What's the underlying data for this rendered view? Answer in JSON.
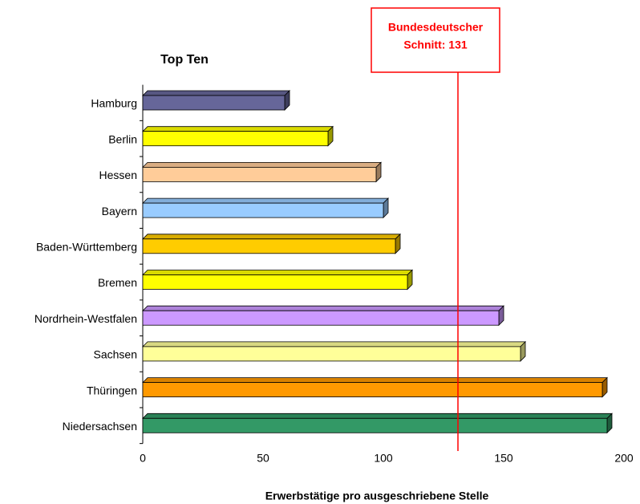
{
  "chart_data": {
    "type": "bar",
    "orientation": "horizontal",
    "title": "Top Ten",
    "x_label": "Erwerbstätige pro ausgeschriebene Stelle",
    "categories": [
      "Hamburg",
      "Berlin",
      "Hessen",
      "Bayern",
      "Baden-Württemberg",
      "Bremen",
      "Nordrhein-Westfalen",
      "Sachsen",
      "Thüringen",
      "Niedersachsen"
    ],
    "values": [
      59,
      77,
      97,
      100,
      105,
      110,
      148,
      157,
      191,
      193
    ],
    "colors": [
      "#666699",
      "#ffff00",
      "#ffcc99",
      "#99ccff",
      "#ffcc00",
      "#ffff00",
      "#cc99ff",
      "#ffff99",
      "#ff9900",
      "#339966"
    ],
    "xlim": [
      0,
      200
    ],
    "xticks": [
      0,
      50,
      100,
      150,
      200
    ],
    "reference": {
      "value": 131,
      "lines": [
        "Bundesdeutscher",
        "Schnitt: 131"
      ],
      "color": "#ff0000"
    }
  }
}
